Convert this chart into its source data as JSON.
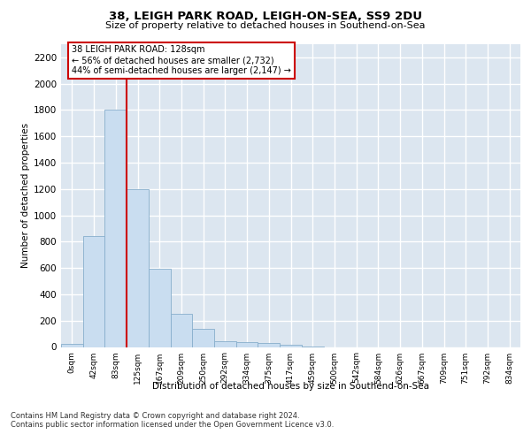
{
  "title1": "38, LEIGH PARK ROAD, LEIGH-ON-SEA, SS9 2DU",
  "title2": "Size of property relative to detached houses in Southend-on-Sea",
  "xlabel": "Distribution of detached houses by size in Southend-on-Sea",
  "ylabel": "Number of detached properties",
  "footnote1": "Contains HM Land Registry data © Crown copyright and database right 2024.",
  "footnote2": "Contains public sector information licensed under the Open Government Licence v3.0.",
  "bar_labels": [
    "0sqm",
    "42sqm",
    "83sqm",
    "125sqm",
    "167sqm",
    "209sqm",
    "250sqm",
    "292sqm",
    "334sqm",
    "375sqm",
    "417sqm",
    "459sqm",
    "500sqm",
    "542sqm",
    "584sqm",
    "626sqm",
    "667sqm",
    "709sqm",
    "751sqm",
    "792sqm",
    "834sqm"
  ],
  "bar_values": [
    25,
    845,
    1800,
    1200,
    595,
    255,
    135,
    42,
    38,
    28,
    15,
    5,
    0,
    0,
    0,
    0,
    0,
    0,
    0,
    0,
    0
  ],
  "bar_color": "#c9ddf0",
  "bar_edgecolor": "#87aecc",
  "vline_color": "#cc0000",
  "annotation_text": "38 LEIGH PARK ROAD: 128sqm\n← 56% of detached houses are smaller (2,732)\n44% of semi-detached houses are larger (2,147) →",
  "annotation_box_facecolor": "#ffffff",
  "annotation_box_edgecolor": "#cc0000",
  "ylim": [
    0,
    2300
  ],
  "yticks": [
    0,
    200,
    400,
    600,
    800,
    1000,
    1200,
    1400,
    1600,
    1800,
    2000,
    2200
  ],
  "background_color": "#dce6f0",
  "plot_background": "#dce6f0"
}
